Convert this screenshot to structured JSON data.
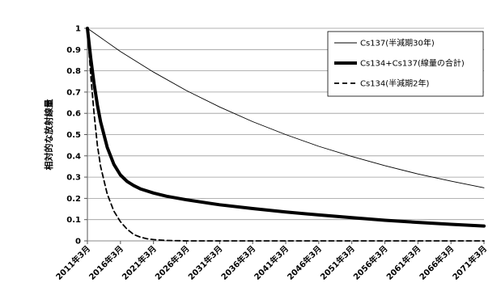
{
  "chart_data": {
    "type": "line",
    "ylabel": "相対的な放射線量",
    "xlabel": "",
    "ylim": [
      0,
      1
    ],
    "yticks": [
      "0",
      "0.1",
      "0.2",
      "0.3",
      "0.4",
      "0.5",
      "0.6",
      "0.7",
      "0.8",
      "0.9",
      "1"
    ],
    "categories": [
      "2011年3月",
      "2016年3月",
      "2021年3月",
      "2026年3月",
      "2031年3月",
      "2036年3月",
      "2041年3月",
      "2046年3月",
      "2051年3月",
      "2056年3月",
      "2061年3月",
      "2066年3月",
      "2071年3月"
    ],
    "grid": true,
    "legend_position": "top-right",
    "series": [
      {
        "name": "Cs137(半減期30年)",
        "style": "thin",
        "color": "#000000",
        "x": [
          0,
          5,
          10,
          15,
          20,
          25,
          30,
          35,
          40,
          45,
          50,
          55,
          60
        ],
        "values": [
          1.0,
          0.891,
          0.794,
          0.707,
          0.63,
          0.561,
          0.5,
          0.445,
          0.397,
          0.354,
          0.315,
          0.281,
          0.25
        ]
      },
      {
        "name": "Cs134+Cs137(線量の合計)",
        "style": "thick",
        "color": "#000000",
        "x": [
          0,
          0.5,
          1,
          1.5,
          2,
          3,
          4,
          5,
          6,
          7,
          8,
          10,
          12,
          15,
          20,
          25,
          30,
          35,
          40,
          45,
          50,
          55,
          60
        ],
        "values": [
          1.0,
          0.86,
          0.74,
          0.64,
          0.56,
          0.44,
          0.36,
          0.31,
          0.28,
          0.26,
          0.245,
          0.225,
          0.21,
          0.193,
          0.17,
          0.152,
          0.136,
          0.122,
          0.109,
          0.097,
          0.087,
          0.078,
          0.07
        ]
      },
      {
        "name": "Cs134(半減期2年)",
        "style": "dashed",
        "color": "#000000",
        "x": [
          0,
          0.5,
          1,
          1.5,
          2,
          3,
          4,
          5,
          6,
          7,
          8,
          9,
          10,
          12,
          15,
          20,
          60
        ],
        "values": [
          1.0,
          0.78,
          0.6,
          0.45,
          0.35,
          0.22,
          0.14,
          0.09,
          0.055,
          0.03,
          0.018,
          0.01,
          0.006,
          0.002,
          0.0,
          0.0,
          0.0
        ]
      }
    ],
    "x_range": [
      0,
      60
    ]
  }
}
